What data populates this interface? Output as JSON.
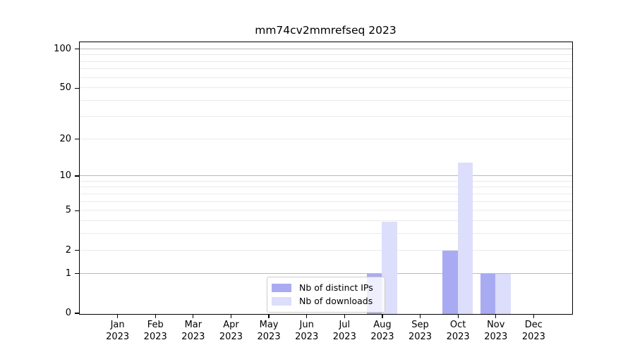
{
  "title": "mm74cv2mmrefseq 2023",
  "colors": {
    "bar_distinct_ips": "#a9abf2",
    "bar_downloads": "#dcdefb",
    "grid_major": "#b9b9b9",
    "grid_minor": "#eaeaea",
    "axis": "#000000",
    "legend_border": "#cccccc",
    "background": "#ffffff"
  },
  "legend": {
    "items": [
      {
        "label": "Nb of distinct IPs"
      },
      {
        "label": "Nb of downloads"
      }
    ]
  },
  "chart_data": {
    "type": "bar",
    "title": "mm74cv2mmrefseq 2023",
    "categories": [
      "Jan 2023",
      "Feb 2023",
      "Mar 2023",
      "Apr 2023",
      "May 2023",
      "Jun 2023",
      "Jul 2023",
      "Aug 2023",
      "Sep 2023",
      "Oct 2023",
      "Nov 2023",
      "Dec 2023"
    ],
    "months": [
      {
        "month": "Jan",
        "year": "2023"
      },
      {
        "month": "Feb",
        "year": "2023"
      },
      {
        "month": "Mar",
        "year": "2023"
      },
      {
        "month": "Apr",
        "year": "2023"
      },
      {
        "month": "May",
        "year": "2023"
      },
      {
        "month": "Jun",
        "year": "2023"
      },
      {
        "month": "Jul",
        "year": "2023"
      },
      {
        "month": "Aug",
        "year": "2023"
      },
      {
        "month": "Sep",
        "year": "2023"
      },
      {
        "month": "Oct",
        "year": "2023"
      },
      {
        "month": "Nov",
        "year": "2023"
      },
      {
        "month": "Dec",
        "year": "2023"
      }
    ],
    "series": [
      {
        "name": "Nb of distinct IPs",
        "color": "#a9abf2",
        "values": [
          0,
          0,
          0,
          0,
          0,
          0,
          0,
          1,
          0,
          2,
          1,
          0
        ]
      },
      {
        "name": "Nb of downloads",
        "color": "#dcdefb",
        "values": [
          0,
          0,
          0,
          0,
          0,
          0,
          0,
          4,
          0,
          13,
          1,
          0
        ]
      }
    ],
    "y_scale": "log10(1+v)",
    "y_ticks": [
      0,
      1,
      2,
      5,
      10,
      20,
      50,
      100
    ],
    "gridlines_major": [
      1,
      10,
      100
    ],
    "gridlines_minor": [
      2,
      3,
      4,
      5,
      6,
      7,
      8,
      9,
      20,
      30,
      40,
      50,
      60,
      70,
      80,
      90
    ],
    "ylim": [
      0,
      112
    ],
    "xlabel": "",
    "ylabel": "",
    "grid": true,
    "legend_position": "lower center"
  }
}
